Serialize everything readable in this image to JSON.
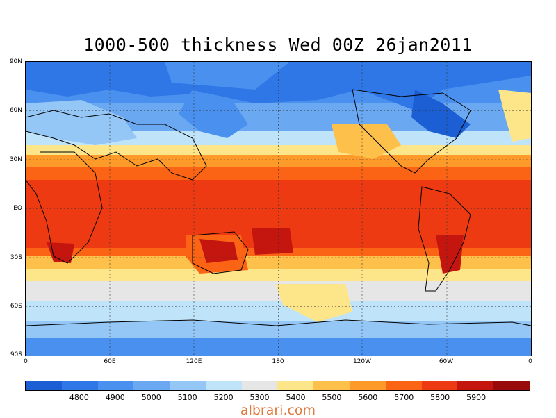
{
  "title": "1000-500 thickness Wed 00Z 26jan2011",
  "lat_labels": [
    "90N",
    "60N",
    "30N",
    "EQ",
    "30S",
    "60S",
    "90S"
  ],
  "lon_labels": [
    "0",
    "60E",
    "120E",
    "180",
    "120W",
    "60W",
    "0"
  ],
  "colorbar": {
    "colors": [
      "#1c5fd4",
      "#2f76e6",
      "#4a90ef",
      "#6aa8f2",
      "#94c6f6",
      "#bfe4fa",
      "#e6e6e6",
      "#fde68a",
      "#fdc14b",
      "#fd9a2a",
      "#fb6414",
      "#ee3a12",
      "#c4160f",
      "#990b0b"
    ],
    "labels": [
      "4800",
      "4900",
      "5000",
      "5100",
      "5200",
      "5300",
      "5400",
      "5500",
      "5600",
      "5700",
      "5800",
      "5900"
    ]
  },
  "watermark": "albrari.com"
}
